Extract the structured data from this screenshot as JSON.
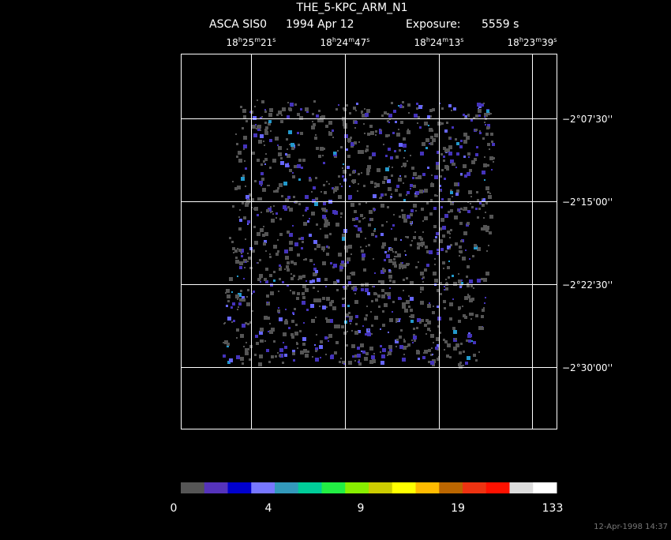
{
  "header": {
    "title": "THE_5-KPC_ARM_N1",
    "instrument": "ASCA SIS0",
    "date": "1994 Apr 12",
    "exposure_label": "Exposure:",
    "exposure": "5559 s"
  },
  "ra_labels": [
    [
      "18",
      "h",
      "25",
      "m",
      "21",
      "s"
    ],
    [
      "18",
      "h",
      "24",
      "m",
      "47",
      "s"
    ],
    [
      "18",
      "h",
      "24",
      "m",
      "13",
      "s"
    ],
    [
      "18",
      "h",
      "23",
      "m",
      "39",
      "s"
    ]
  ],
  "dec_labels": [
    "−2°07'30''",
    "−2°15'00''",
    "−2°22'30''",
    "−2°30'00''"
  ],
  "colorbar_labels": [
    0,
    4,
    9,
    19,
    133
  ],
  "timestamp": "12-Apr-1998 14:37"
}
